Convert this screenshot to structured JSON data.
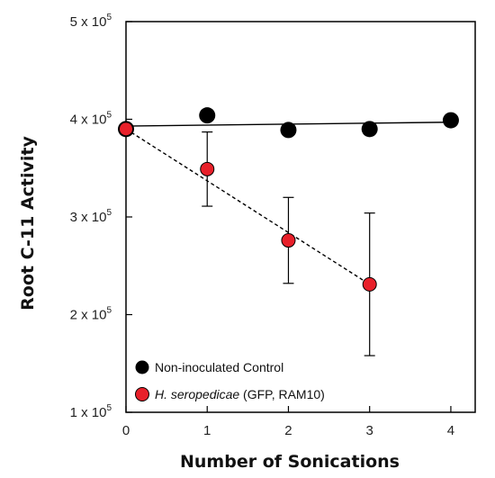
{
  "chart_data": {
    "type": "scatter",
    "xlabel": "Number of Sonications",
    "ylabel": "Root C-11 Activity",
    "xlim": [
      0,
      4.3
    ],
    "ylim": [
      100000,
      500000
    ],
    "x_ticks": [
      "0",
      "1",
      "2",
      "3",
      "4"
    ],
    "y_ticks": [
      {
        "value": 100000,
        "base": "1 x 10",
        "exp": "5"
      },
      {
        "value": 200000,
        "base": "2 x 10",
        "exp": "5"
      },
      {
        "value": 300000,
        "base": "3 x 10",
        "exp": "5"
      },
      {
        "value": 400000,
        "base": "4 x 10",
        "exp": "5"
      },
      {
        "value": 500000,
        "base": "5 x 10",
        "exp": "5"
      }
    ],
    "grid": false,
    "legend_position": "bottom-left",
    "series": [
      {
        "name": "Non-inoculated Control",
        "color": "#000000",
        "x": [
          0,
          1,
          2,
          3,
          4
        ],
        "y": [
          390000,
          404000,
          389000,
          390000,
          399000
        ],
        "fit_line": {
          "style": "solid",
          "x": [
            0,
            4
          ],
          "y": [
            393000,
            397000
          ]
        }
      },
      {
        "name_italic": "H. seropedicae",
        "name_rest": " (GFP, RAM10)",
        "color": "#e8202a",
        "x": [
          0,
          1,
          2,
          3
        ],
        "y": [
          390000,
          349000,
          276000,
          231000
        ],
        "error": [
          0,
          38000,
          44000,
          73000
        ],
        "fit_line": {
          "style": "dashed",
          "x": [
            0,
            3
          ],
          "y": [
            390000,
            231000
          ]
        }
      }
    ]
  }
}
